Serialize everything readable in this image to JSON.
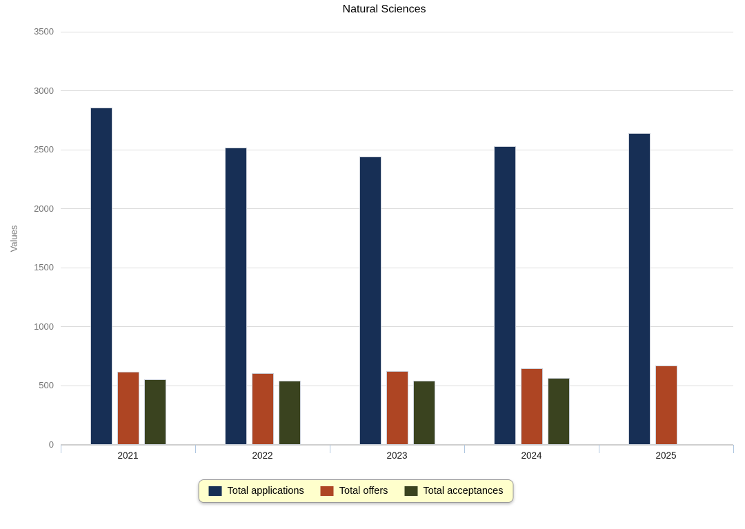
{
  "chart_data": {
    "type": "bar",
    "title": "Natural Sciences",
    "xlabel": "",
    "ylabel": "Values",
    "ylim": [
      0,
      3500
    ],
    "ytick_step": 500,
    "grid": true,
    "legend_position": "bottom",
    "categories": [
      "2021",
      "2022",
      "2023",
      "2024",
      "2025"
    ],
    "series": [
      {
        "name": "Total applications",
        "color": "#172F55",
        "values": [
          2860,
          2520,
          2440,
          2530,
          2640
        ]
      },
      {
        "name": "Total offers",
        "color": "#AE4523",
        "values": [
          620,
          610,
          625,
          650,
          670
        ]
      },
      {
        "name": "Total acceptances",
        "color": "#3A431F",
        "values": [
          555,
          545,
          545,
          565,
          0
        ]
      }
    ]
  },
  "colors": {
    "gridline": "#dcdcdc",
    "axis_line": "#cfcfcf",
    "tick": "#aec6e0",
    "y_label_text": "#747474",
    "x_label_text": "#141414",
    "legend_background": "#ffffcc",
    "legend_border": "#9a9a9a"
  }
}
